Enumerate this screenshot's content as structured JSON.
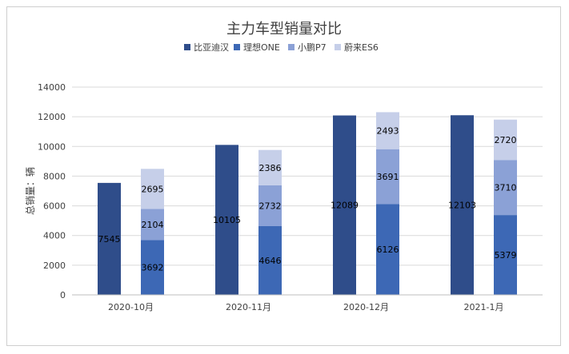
{
  "chart_data": {
    "type": "bar",
    "title": "主力车型销量对比",
    "ylabel": "总销量：辆",
    "xlabel": "",
    "ylim": [
      0,
      14000
    ],
    "yticks": [
      0,
      2000,
      4000,
      6000,
      8000,
      10000,
      12000,
      14000
    ],
    "grid": true,
    "legend_position": "top",
    "categories": [
      "2020-10月",
      "2020-11月",
      "2020-12月",
      "2021-1月"
    ],
    "series": [
      {
        "name": "比亚迪汉",
        "stack": "a",
        "color": "#2f4d8a",
        "values": [
          7545,
          10105,
          12089,
          12103
        ]
      },
      {
        "name": "理想ONE",
        "stack": "b",
        "color": "#3d68b5",
        "values": [
          3692,
          4646,
          6126,
          5379
        ]
      },
      {
        "name": "小鹏P7",
        "stack": "b",
        "color": "#8ba1d6",
        "values": [
          2104,
          2732,
          3691,
          3710
        ]
      },
      {
        "name": "蔚来ES6",
        "stack": "b",
        "color": "#c6cfe9",
        "values": [
          2695,
          2386,
          2493,
          2720
        ]
      }
    ]
  }
}
